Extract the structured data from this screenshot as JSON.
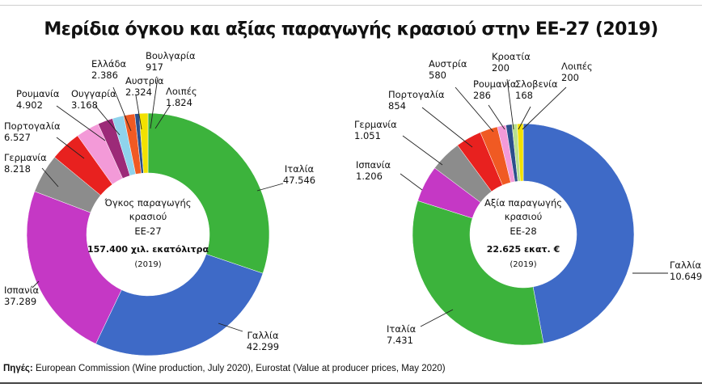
{
  "title": "Μερίδια όγκου και αξίας παραγωγής κρασιού στην ΕΕ-27 (2019)",
  "source": {
    "label": "Πηγές:",
    "text": "European Commission (Wine production, July 2020), Eurostat (Value at producer prices, May 2020)"
  },
  "chart_data": [
    {
      "type": "pie",
      "variant": "donut",
      "center_text": {
        "line1": "Όγκος παραγωγής",
        "line2": "κρασιού",
        "line3": "ΕΕ-27",
        "line4": "157.400 χιλ. εκατόλιτρα",
        "line5": "(2019)"
      },
      "slices": [
        {
          "label": "Ιταλία",
          "value": 47546,
          "value_label": "47.546",
          "color": "#3cb33c"
        },
        {
          "label": "Γαλλία",
          "value": 42299,
          "value_label": "42.299",
          "color": "#3e6ac7"
        },
        {
          "label": "Ισπανία",
          "value": 37289,
          "value_label": "37.289",
          "color": "#c538c5"
        },
        {
          "label": "Γερμανία",
          "value": 8218,
          "value_label": "8.218",
          "color": "#8c8c8c"
        },
        {
          "label": "Πορτογαλία",
          "value": 6527,
          "value_label": "6.527",
          "color": "#e8211f"
        },
        {
          "label": "Ρουμανία",
          "value": 4902,
          "value_label": "4.902",
          "color": "#f39ad8"
        },
        {
          "label": "Ουγγαρία",
          "value": 3168,
          "value_label": "3.168",
          "color": "#9c2a78"
        },
        {
          "label": "Ελλάδα",
          "value": 2386,
          "value_label": "2.386",
          "color": "#8fd3ec"
        },
        {
          "label": "Αυστρία",
          "value": 2324,
          "value_label": "2.324",
          "color": "#f05a23"
        },
        {
          "label": "Βουλγαρία",
          "value": 917,
          "value_label": "917",
          "color": "#2c4f8c"
        },
        {
          "label": "Λοιπές",
          "value": 1824,
          "value_label": "1.824",
          "color": "#f2e100"
        }
      ]
    },
    {
      "type": "pie",
      "variant": "donut",
      "center_text": {
        "line1": "Αξία παραγωγής",
        "line2": "κρασιού",
        "line3": "ΕΕ-28",
        "line4": "22.625 εκατ. €",
        "line5": "(2019)"
      },
      "slices": [
        {
          "label": "Γαλλία",
          "value": 10649,
          "value_label": "10.649",
          "color": "#3e6ac7"
        },
        {
          "label": "Ιταλία",
          "value": 7431,
          "value_label": "7.431",
          "color": "#3cb33c"
        },
        {
          "label": "Ισπανία",
          "value": 1206,
          "value_label": "1.206",
          "color": "#c538c5"
        },
        {
          "label": "Γερμανία",
          "value": 1051,
          "value_label": "1.051",
          "color": "#8c8c8c"
        },
        {
          "label": "Πορτογαλία",
          "value": 854,
          "value_label": "854",
          "color": "#e8211f"
        },
        {
          "label": "Αυστρία",
          "value": 580,
          "value_label": "580",
          "color": "#f05a23"
        },
        {
          "label": "Ρουμανία",
          "value": 286,
          "value_label": "286",
          "color": "#f39ad8"
        },
        {
          "label": "Κροατία",
          "value": 200,
          "value_label": "200",
          "color": "#2c4f8c"
        },
        {
          "label": "Σλοβενία",
          "value": 168,
          "value_label": "168",
          "color": "#b8e08f"
        },
        {
          "label": "Λοιπές",
          "value": 200,
          "value_label": "200",
          "color": "#f2e100"
        }
      ]
    }
  ]
}
